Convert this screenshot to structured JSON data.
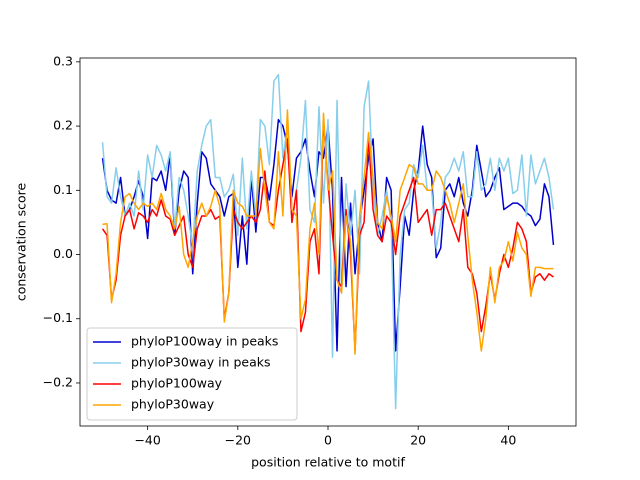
{
  "chart_data": {
    "type": "line",
    "xlabel": "position relative to motif",
    "ylabel": "conservation score",
    "x": [
      -50,
      -49,
      -48,
      -47,
      -46,
      -45,
      -44,
      -43,
      -42,
      -41,
      -40,
      -39,
      -38,
      -37,
      -36,
      -35,
      -34,
      -33,
      -32,
      -31,
      -30,
      -29,
      -28,
      -27,
      -26,
      -25,
      -24,
      -23,
      -22,
      -21,
      -20,
      -19,
      -18,
      -17,
      -16,
      -15,
      -14,
      -13,
      -12,
      -11,
      -10,
      -9,
      -8,
      -7,
      -6,
      -5,
      -4,
      -3,
      -2,
      -1,
      0,
      1,
      2,
      3,
      4,
      5,
      6,
      7,
      8,
      9,
      10,
      11,
      12,
      13,
      14,
      15,
      16,
      17,
      18,
      19,
      20,
      21,
      22,
      23,
      24,
      25,
      26,
      27,
      28,
      29,
      30,
      31,
      32,
      33,
      34,
      35,
      36,
      37,
      38,
      39,
      40,
      41,
      42,
      43,
      44,
      45,
      46,
      47,
      48,
      49,
      50
    ],
    "series": [
      {
        "name": "phyloP100way in peaks",
        "color": "#0000cd",
        "values": [
          0.15,
          0.1,
          0.085,
          0.08,
          0.12,
          0.06,
          0.07,
          0.09,
          0.115,
          0.09,
          0.025,
          0.12,
          0.115,
          0.13,
          0.1,
          0.155,
          0.03,
          0.1,
          0.13,
          0.12,
          -0.03,
          0.08,
          0.16,
          0.15,
          0.11,
          0.1,
          0.09,
          0.06,
          0.09,
          0.095,
          -0.02,
          0.06,
          -0.015,
          0.12,
          0.035,
          0.12,
          0.12,
          0.085,
          0.14,
          0.21,
          0.2,
          0.17,
          0.09,
          0.15,
          0.16,
          0.18,
          0.13,
          0.09,
          0.16,
          0.15,
          0.2,
          0.1,
          -0.15,
          0.12,
          -0.05,
          0.08,
          -0.03,
          0.05,
          0.1,
          0.15,
          0.18,
          0.05,
          0.02,
          0.12,
          0.1,
          -0.15,
          -0.05,
          0.06,
          0.03,
          0.1,
          0.13,
          0.2,
          0.14,
          0.12,
          -0.005,
          0.01,
          0.1,
          0.11,
          0.09,
          0.12,
          0.08,
          0.06,
          0.1,
          0.17,
          0.13,
          0.09,
          0.1,
          0.12,
          0.135,
          0.07,
          0.075,
          0.08,
          0.08,
          0.075,
          0.065,
          0.06,
          0.045,
          0.055,
          0.11,
          0.09,
          0.015
        ]
      },
      {
        "name": "phyloP30way in peaks",
        "color": "#87ceeb",
        "values": [
          0.175,
          0.09,
          0.08,
          0.135,
          0.09,
          0.06,
          0.08,
          0.06,
          0.13,
          0.07,
          0.155,
          0.12,
          0.17,
          0.155,
          0.13,
          0.16,
          0.04,
          0.12,
          0.1,
          0.06,
          0.01,
          0.13,
          0.17,
          0.2,
          0.21,
          0.12,
          0.12,
          0.09,
          0.1,
          0.125,
          0.03,
          0.15,
          0.04,
          0.13,
          0.06,
          0.21,
          0.2,
          0.14,
          0.27,
          0.28,
          0.15,
          0.2,
          0.05,
          0.1,
          0.15,
          0.24,
          0.07,
          0.05,
          0.23,
          0.08,
          0.21,
          -0.16,
          0.24,
          -0.06,
          0.11,
          0.03,
          0.1,
          -0.03,
          0.23,
          0.27,
          0.1,
          0.03,
          0.06,
          0.1,
          0.05,
          -0.24,
          0.0,
          0.07,
          0.08,
          0.14,
          0.12,
          0.17,
          0.1,
          0.1,
          0.01,
          0.05,
          0.12,
          0.13,
          0.15,
          0.13,
          0.16,
          0.09,
          0.09,
          0.16,
          0.1,
          0.11,
          0.15,
          0.1,
          0.15,
          0.13,
          0.15,
          0.095,
          0.1,
          0.155,
          0.06,
          0.155,
          0.11,
          0.13,
          0.15,
          0.12,
          0.07
        ]
      },
      {
        "name": "phyloP100way",
        "color": "#ff0000",
        "values": [
          0.04,
          0.03,
          -0.07,
          -0.04,
          0.03,
          0.06,
          0.07,
          0.04,
          0.065,
          0.06,
          0.05,
          0.07,
          0.06,
          0.085,
          0.06,
          0.055,
          0.03,
          0.045,
          0.06,
          0.0,
          -0.02,
          0.04,
          0.06,
          0.06,
          0.07,
          0.055,
          0.06,
          -0.1,
          -0.06,
          0.07,
          0.05,
          0.04,
          0.05,
          0.06,
          0.05,
          0.07,
          0.13,
          0.05,
          0.045,
          0.1,
          0.14,
          0.18,
          0.05,
          0.1,
          -0.12,
          -0.09,
          0.02,
          0.04,
          -0.03,
          0.21,
          0.11,
          0.03,
          -0.04,
          -0.05,
          0.07,
          0.0,
          -0.15,
          0.03,
          0.05,
          0.18,
          0.07,
          0.03,
          0.02,
          0.06,
          0.05,
          0.0,
          0.06,
          0.08,
          0.1,
          0.12,
          0.05,
          0.06,
          0.07,
          0.03,
          0.07,
          0.07,
          0.08,
          0.06,
          0.04,
          0.02,
          0.07,
          -0.02,
          -0.03,
          -0.06,
          -0.12,
          -0.08,
          -0.03,
          -0.07,
          -0.03,
          0.0,
          -0.02,
          0.01,
          0.05,
          0.04,
          0.02,
          -0.06,
          -0.035,
          -0.03,
          -0.04,
          -0.03,
          -0.035
        ]
      },
      {
        "name": "phyloP30way",
        "color": "#ffa500",
        "values": [
          0.047,
          0.048,
          -0.075,
          -0.03,
          0.05,
          0.09,
          0.095,
          0.08,
          0.07,
          0.08,
          0.075,
          0.08,
          0.07,
          0.095,
          0.07,
          0.06,
          0.04,
          0.075,
          0.0,
          -0.02,
          0.02,
          0.06,
          0.08,
          0.06,
          0.075,
          0.1,
          0.075,
          -0.105,
          -0.06,
          0.1,
          0.08,
          0.075,
          0.06,
          0.06,
          0.06,
          0.165,
          0.1,
          0.05,
          0.04,
          0.16,
          0.06,
          0.225,
          0.07,
          0.06,
          -0.1,
          -0.07,
          0.04,
          0.08,
          0.0,
          0.22,
          0.1,
          0.13,
          -0.04,
          -0.06,
          0.06,
          0.02,
          -0.155,
          0.06,
          0.12,
          0.19,
          0.12,
          0.05,
          0.04,
          0.09,
          0.06,
          0.02,
          0.1,
          0.12,
          0.14,
          0.135,
          0.11,
          0.11,
          0.1,
          0.1,
          0.13,
          0.12,
          0.1,
          0.08,
          0.05,
          0.08,
          0.11,
          0.03,
          -0.04,
          -0.09,
          -0.15,
          -0.1,
          -0.02,
          -0.075,
          -0.02,
          -0.01,
          0.02,
          -0.01,
          0.035,
          0.01,
          0.0,
          -0.065,
          -0.02,
          -0.02,
          -0.022,
          -0.022,
          -0.022
        ]
      }
    ],
    "xlim": [
      -55,
      55
    ],
    "xticks": [
      {
        "value": -40,
        "label": "−40"
      },
      {
        "value": -20,
        "label": "−20"
      },
      0,
      20,
      40
    ],
    "ylim": [
      -0.267,
      0.306
    ],
    "yticks": [
      {
        "value": -0.2,
        "label": "−0.2"
      },
      {
        "value": -0.1,
        "label": "−0.1"
      },
      {
        "value": 0,
        "label": "0.0"
      },
      0.1,
      0.2,
      0.3
    ],
    "legend": "lower left",
    "grid": false
  }
}
